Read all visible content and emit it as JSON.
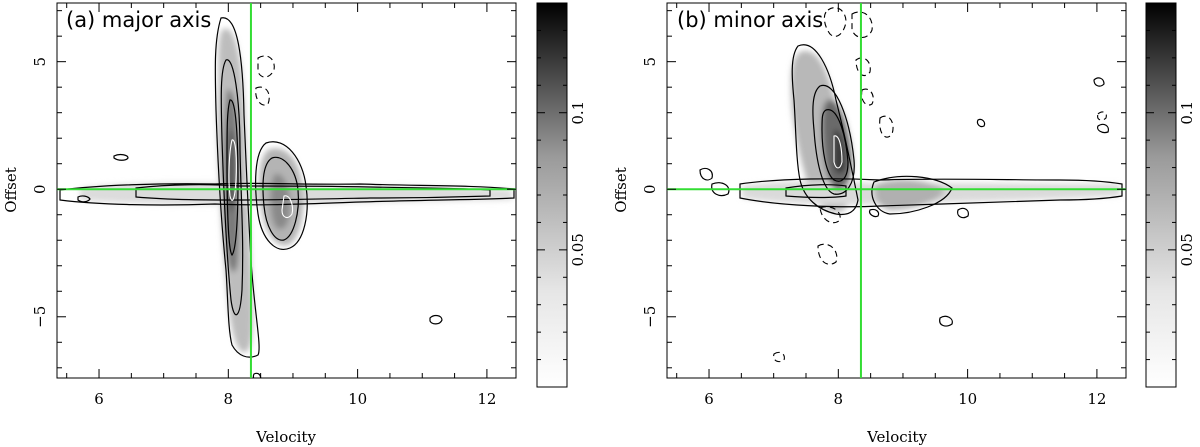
{
  "chart_data": [
    {
      "type": "heatmap",
      "panel_label": "(a) major axis",
      "xlabel": "Velocity",
      "ylabel": "Offset",
      "xlim": [
        5.35,
        12.45
      ],
      "ylim": [
        -7.4,
        7.3
      ],
      "xticks": [
        6,
        8,
        10,
        12
      ],
      "xtick_labels": [
        "6",
        "8",
        "10",
        "12"
      ],
      "yticks": [
        -5,
        0,
        5
      ],
      "ytick_labels": [
        "−5",
        "0",
        "5"
      ],
      "reference_lines": {
        "velocity": 8.35,
        "offset": 0,
        "color": "#33dd33"
      },
      "colorbar": {
        "range": [
          0.0,
          0.14
        ],
        "ticks": [
          0.05,
          0.1
        ],
        "tick_labels": [
          "0.05",
          "0.1"
        ],
        "colormap": "white-to-black"
      },
      "emission_components": [
        {
          "name": "vertical ridge",
          "center_velocity": 8.05,
          "offset_range": [
            -6.0,
            6.8
          ],
          "peak": 0.12
        },
        {
          "name": "horizontal ridge",
          "center_offset": 0.1,
          "velocity_range": [
            5.9,
            12.4
          ],
          "peak": 0.07
        },
        {
          "name": "redshifted lobe",
          "velocity": 8.9,
          "offset": 0.0,
          "peak": 0.09
        }
      ]
    },
    {
      "type": "heatmap",
      "panel_label": "(b) minor axis",
      "xlabel": "Velocity",
      "ylabel": "Offset",
      "xlim": [
        5.35,
        12.45
      ],
      "ylim": [
        -7.4,
        7.3
      ],
      "xticks": [
        6,
        8,
        10,
        12
      ],
      "xtick_labels": [
        "6",
        "8",
        "10",
        "12"
      ],
      "yticks": [
        -5,
        0,
        5
      ],
      "ytick_labels": [
        "−5",
        "0",
        "5"
      ],
      "reference_lines": {
        "velocity": 8.35,
        "offset": 0,
        "color": "#33dd33"
      },
      "colorbar": {
        "range": [
          0.0,
          0.14
        ],
        "ticks": [
          0.05,
          0.1
        ],
        "tick_labels": [
          "0.05",
          "0.1"
        ],
        "colormap": "white-to-black"
      },
      "emission_components": [
        {
          "name": "upper-left ridge",
          "center_velocity": 7.9,
          "offset_range": [
            -0.5,
            5.0
          ],
          "peak": 0.13
        },
        {
          "name": "horizontal ridge",
          "center_offset": 0.15,
          "velocity_range": [
            6.6,
            12.3
          ],
          "peak": 0.06
        },
        {
          "name": "redshifted lobe",
          "velocity": 9.2,
          "offset": 0.0,
          "peak": 0.08
        }
      ]
    }
  ]
}
